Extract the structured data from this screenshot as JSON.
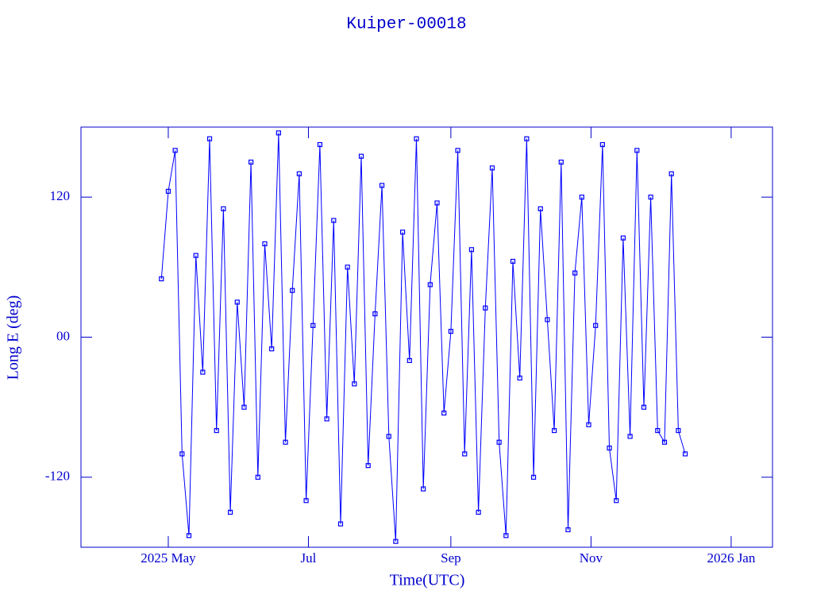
{
  "chart_data": {
    "type": "line",
    "title": "Kuiper-00018",
    "x_label": "Time(UTC)",
    "y_label": "Long E (deg)",
    "color": "#0000ff",
    "markers": true,
    "x": [
      117,
      120,
      123,
      126,
      129,
      132,
      135,
      138,
      141,
      144,
      147,
      150,
      153,
      156,
      159,
      162,
      165,
      168,
      171,
      174,
      177,
      180,
      183,
      186,
      189,
      192,
      195,
      198,
      201,
      204,
      207,
      210,
      213,
      216,
      219,
      222,
      225,
      228,
      231,
      234,
      237,
      240,
      243,
      246,
      249,
      252,
      255,
      258,
      261,
      264,
      267,
      270,
      273,
      276,
      279,
      282,
      285,
      288,
      291,
      294,
      297,
      300,
      303,
      306,
      309,
      312,
      315,
      318,
      321,
      324,
      327,
      330,
      333,
      336,
      339,
      342,
      345
    ],
    "values": [
      50,
      125,
      160,
      -100,
      -170,
      70,
      -30,
      170,
      -80,
      110,
      -150,
      30,
      -60,
      150,
      -120,
      80,
      -10,
      175,
      -90,
      40,
      140,
      -140,
      10,
      165,
      -70,
      100,
      -160,
      60,
      -40,
      155,
      -110,
      20,
      130,
      -85,
      -175,
      90,
      -20,
      170,
      -130,
      45,
      115,
      -65,
      5,
      160,
      -100,
      75,
      -150,
      25,
      145,
      -90,
      -170,
      65,
      -35,
      170,
      -120,
      110,
      15,
      -80,
      150,
      -165,
      55,
      120,
      -75,
      10,
      165,
      -95,
      -140,
      85,
      -85,
      160,
      -60,
      120,
      -80,
      -90,
      140,
      -80,
      -100
    ],
    "xlim": [
      82,
      383
    ],
    "xticks": [
      {
        "value": 120,
        "label": "2025 May"
      },
      {
        "value": 181,
        "label": "Jul"
      },
      {
        "value": 243,
        "label": "Sep"
      },
      {
        "value": 304,
        "label": "Nov"
      },
      {
        "value": 365,
        "label": "2026 Jan"
      }
    ],
    "ylim": [
      -180,
      180
    ],
    "yticks": [
      -120,
      {
        "value": 0,
        "label": "00"
      },
      120
    ]
  }
}
